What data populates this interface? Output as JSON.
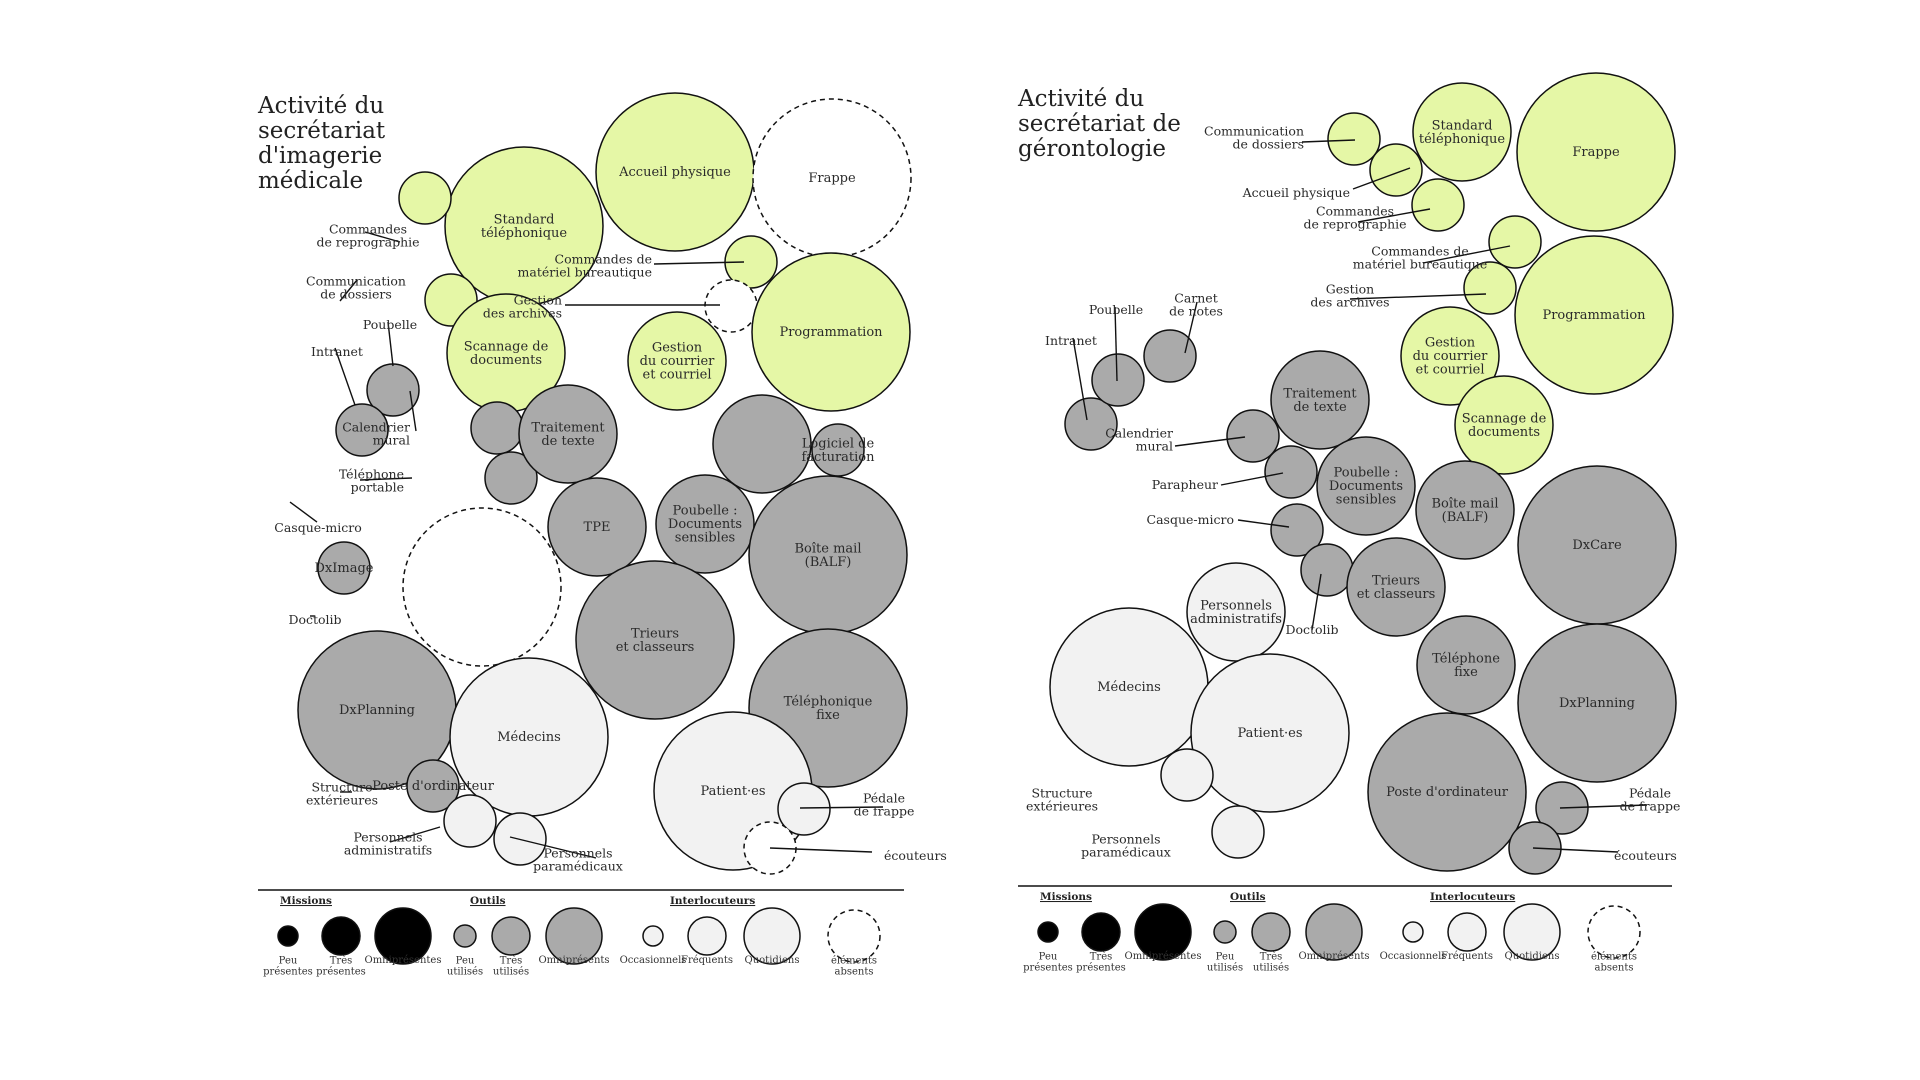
{
  "colors": {
    "mission": "#e5f7a6",
    "tool": "#aaaaaa",
    "interlocutor": "#f2f2f2",
    "stroke": "#111111",
    "legend_mission": "#000000"
  },
  "panels": [
    {
      "id": "imagerie",
      "title": [
        "Activité du",
        "secrétariat",
        "d'imagerie",
        "médicale"
      ],
      "bubbles": [
        {
          "cat": "mission",
          "label": [
            "Accueil physique"
          ]
        },
        {
          "cat": "absent",
          "label": [
            "Frappe"
          ]
        },
        {
          "cat": "mission",
          "label": [
            "Standard",
            "téléphonique"
          ]
        },
        {
          "cat": "mission",
          "label": []
        },
        {
          "cat": "mission",
          "label": []
        },
        {
          "cat": "mission",
          "label": [
            "Scannage de",
            "documents"
          ]
        },
        {
          "cat": "mission",
          "label": []
        },
        {
          "cat": "absent",
          "label": []
        },
        {
          "cat": "mission",
          "label": [
            "Gestion",
            "du courrier",
            "et courriel"
          ]
        },
        {
          "cat": "mission",
          "label": [
            "Programmation"
          ]
        },
        {
          "cat": "tool",
          "label": []
        },
        {
          "cat": "tool",
          "label": []
        },
        {
          "cat": "tool",
          "label": []
        },
        {
          "cat": "tool",
          "label": []
        },
        {
          "cat": "tool",
          "label": [
            "Traitement",
            "de texte"
          ]
        },
        {
          "cat": "tool",
          "label": []
        },
        {
          "cat": "tool",
          "label": [
            "Logiciel de",
            "facturation"
          ]
        },
        {
          "cat": "tool",
          "label": [
            "TPE"
          ]
        },
        {
          "cat": "tool",
          "label": [
            "Poubelle :",
            "Documents",
            "sensibles"
          ]
        },
        {
          "cat": "tool",
          "label": [
            "Boîte mail",
            "(BALF)"
          ]
        },
        {
          "cat": "tool",
          "label": [
            "DxImage"
          ]
        },
        {
          "cat": "absent",
          "label": []
        },
        {
          "cat": "tool",
          "label": [
            "Trieurs",
            "et classeurs"
          ]
        },
        {
          "cat": "tool",
          "label": [
            "Téléphonique",
            "fixe"
          ]
        },
        {
          "cat": "tool",
          "label": [
            "DxPlanning"
          ]
        },
        {
          "cat": "interlocutor",
          "label": [
            "Médecins"
          ]
        },
        {
          "cat": "interlocutor",
          "label": [
            "Patient·es"
          ]
        },
        {
          "cat": "tool",
          "label": [
            "Poste d'ordinateur"
          ]
        },
        {
          "cat": "interlocutor",
          "label": []
        },
        {
          "cat": "interlocutor",
          "label": []
        },
        {
          "cat": "interlocutor",
          "label": []
        },
        {
          "cat": "absent",
          "label": []
        },
        {
          "cat": "absent",
          "label": []
        }
      ],
      "outer_labels": [
        {
          "label": [
            "Commandes",
            "de reprographie"
          ]
        },
        {
          "label": [
            "Communication",
            "de dossiers"
          ]
        },
        {
          "label": [
            "Poubelle"
          ]
        },
        {
          "label": [
            "Intranet"
          ]
        },
        {
          "label": [
            "Calendrier",
            "mural"
          ]
        },
        {
          "label": [
            "Téléphone",
            "portable"
          ]
        },
        {
          "label": [
            "Casque-micro"
          ]
        },
        {
          "label": [
            "Doctolib"
          ]
        },
        {
          "label": [
            "Commandes de",
            "matériel bureautique"
          ]
        },
        {
          "label": [
            "Gestion",
            "des archives"
          ]
        },
        {
          "label": [
            "Structure",
            "extérieures"
          ]
        },
        {
          "label": [
            "Personnels",
            "administratifs"
          ]
        },
        {
          "label": [
            "Personnels",
            "paramédicaux"
          ]
        },
        {
          "label": [
            "Pédale",
            "de frappe"
          ]
        },
        {
          "label": [
            "écouteurs"
          ]
        }
      ]
    },
    {
      "id": "gerontologie",
      "title": [
        "Activité du",
        "secrétariat de",
        "gérontologie"
      ],
      "bubbles": [
        {
          "cat": "mission",
          "label": []
        },
        {
          "cat": "mission",
          "label": [
            "Standard",
            "téléphonique"
          ]
        },
        {
          "cat": "mission",
          "label": [
            "Frappe"
          ]
        },
        {
          "cat": "mission",
          "label": []
        },
        {
          "cat": "mission",
          "label": []
        },
        {
          "cat": "mission",
          "label": []
        },
        {
          "cat": "mission",
          "label": []
        },
        {
          "cat": "mission",
          "label": [
            "Programmation"
          ]
        },
        {
          "cat": "mission",
          "label": [
            "Gestion",
            "du courrier",
            "et courriel"
          ]
        },
        {
          "cat": "mission",
          "label": [
            "Scannage de",
            "documents"
          ]
        },
        {
          "cat": "tool",
          "label": []
        },
        {
          "cat": "tool",
          "label": []
        },
        {
          "cat": "tool",
          "label": []
        },
        {
          "cat": "tool",
          "label": [
            "Traitement",
            "de texte"
          ]
        },
        {
          "cat": "tool",
          "label": []
        },
        {
          "cat": "tool",
          "label": []
        },
        {
          "cat": "tool",
          "label": [
            "Poubelle :",
            "Documents",
            "sensibles"
          ]
        },
        {
          "cat": "tool",
          "label": [
            "Boîte mail",
            "(BALF)"
          ]
        },
        {
          "cat": "tool",
          "label": [
            "DxCare"
          ]
        },
        {
          "cat": "tool",
          "label": []
        },
        {
          "cat": "tool",
          "label": []
        },
        {
          "cat": "tool",
          "label": [
            "Trieurs",
            "et classeurs"
          ]
        },
        {
          "cat": "interlocutor",
          "label": [
            "Personnels",
            "administratifs"
          ]
        },
        {
          "cat": "tool",
          "label": [
            "Téléphone",
            "fixe"
          ]
        },
        {
          "cat": "tool",
          "label": [
            "DxPlanning"
          ]
        },
        {
          "cat": "interlocutor",
          "label": [
            "Médecins"
          ]
        },
        {
          "cat": "interlocutor",
          "label": [
            "Patient·es"
          ]
        },
        {
          "cat": "tool",
          "label": [
            "Poste d'ordinateur"
          ]
        },
        {
          "cat": "interlocutor",
          "label": []
        },
        {
          "cat": "interlocutor",
          "label": []
        },
        {
          "cat": "tool",
          "label": []
        },
        {
          "cat": "tool",
          "label": []
        }
      ],
      "outer_labels": [
        {
          "label": [
            "Communication",
            "de dossiers"
          ]
        },
        {
          "label": [
            "Accueil physique"
          ]
        },
        {
          "label": [
            "Commandes",
            "de reprographie"
          ]
        },
        {
          "label": [
            "Commandes de",
            "matériel bureautique"
          ]
        },
        {
          "label": [
            "Gestion",
            "des archives"
          ]
        },
        {
          "label": [
            "Carnet",
            "de notes"
          ]
        },
        {
          "label": [
            "Poubelle"
          ]
        },
        {
          "label": [
            "Intranet"
          ]
        },
        {
          "label": [
            "Calendrier",
            "mural"
          ]
        },
        {
          "label": [
            "Parapheur"
          ]
        },
        {
          "label": [
            "Casque-micro"
          ]
        },
        {
          "label": [
            "Doctolib"
          ]
        },
        {
          "label": [
            "Structure",
            "extérieures"
          ]
        },
        {
          "label": [
            "Personnels",
            "paramédicaux"
          ]
        },
        {
          "label": [
            "Pédale",
            "de frappe"
          ]
        },
        {
          "label": [
            "écouteurs"
          ]
        }
      ]
    }
  ],
  "legend": {
    "headers": [
      "Missions",
      "Outils",
      "Interlocuteurs"
    ],
    "items": [
      {
        "cat": "legend_mission",
        "caption": [
          "Peu",
          "présentes"
        ]
      },
      {
        "cat": "legend_mission",
        "caption": [
          "Très",
          "présentes"
        ]
      },
      {
        "cat": "legend_mission",
        "caption": [
          "Omniprésentes"
        ]
      },
      {
        "cat": "tool",
        "caption": [
          "Peu",
          "utilisés"
        ]
      },
      {
        "cat": "tool",
        "caption": [
          "Très",
          "utilisés"
        ]
      },
      {
        "cat": "tool",
        "caption": [
          "Omniprésents"
        ]
      },
      {
        "cat": "interlocutor",
        "caption": [
          "Occasionnels"
        ]
      },
      {
        "cat": "interlocutor",
        "caption": [
          "Fréquents"
        ]
      },
      {
        "cat": "interlocutor",
        "caption": [
          "Quotidiens"
        ]
      },
      {
        "cat": "absent",
        "caption": [
          "éléments",
          "absents"
        ]
      }
    ]
  }
}
